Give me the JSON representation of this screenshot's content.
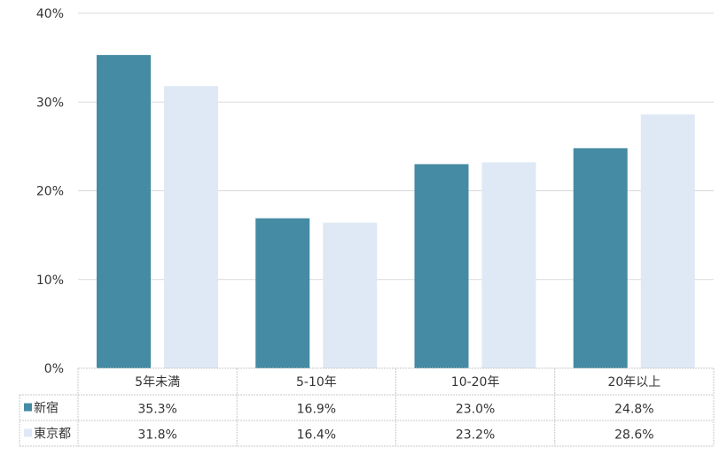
{
  "chart_data": {
    "type": "bar",
    "categories": [
      "5年未満",
      "5-10年",
      "10-20年",
      "20年以上"
    ],
    "series": [
      {
        "name": "新宿",
        "values": [
          35.3,
          16.9,
          23.0,
          24.8
        ],
        "labels": [
          "35.3%",
          "16.9%",
          "23.0%",
          "24.8%"
        ],
        "color": "#458BA3"
      },
      {
        "name": "東京都",
        "values": [
          31.8,
          16.4,
          23.2,
          28.6
        ],
        "labels": [
          "31.8%",
          "16.4%",
          "23.2%",
          "28.6%"
        ],
        "color": "#DEE9F5"
      }
    ],
    "ylim": [
      0,
      40
    ],
    "yticks": [
      "0%",
      "10%",
      "20%",
      "30%",
      "40%"
    ],
    "grid": true,
    "legend": "data-table",
    "data_table": true
  }
}
